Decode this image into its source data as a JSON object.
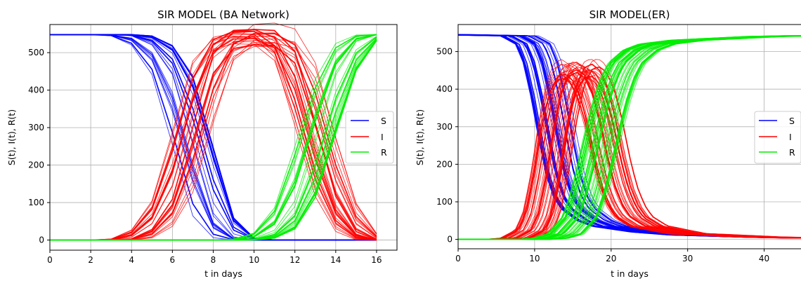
{
  "chart_data": [
    {
      "type": "line",
      "title": "SIR MODEL (BA Network)",
      "xlabel": "t in days",
      "ylabel": "S(t), I(t), R(t)",
      "xlim": [
        0,
        17
      ],
      "ylim": [
        -27,
        575
      ],
      "xticks": [
        0,
        2,
        4,
        6,
        8,
        10,
        12,
        14,
        16
      ],
      "yticks": [
        0,
        100,
        200,
        300,
        400,
        500
      ],
      "grid": true,
      "legend": {
        "position": "right",
        "entries": [
          "S",
          "I",
          "R"
        ]
      },
      "colors": {
        "S": "#0000ff",
        "I": "#ff0000",
        "R": "#00ee00"
      },
      "series": [
        {
          "name": "S",
          "x": [
            0,
            3,
            4,
            5,
            6,
            7,
            8,
            9,
            10,
            16
          ],
          "y": [
            548,
            548,
            545,
            520,
            440,
            250,
            60,
            5,
            0,
            0
          ]
        },
        {
          "name": "I",
          "x": [
            0,
            3,
            4,
            5,
            6,
            7,
            8,
            9,
            10,
            11,
            12,
            13,
            14,
            15,
            16
          ],
          "y": [
            0,
            0,
            3,
            28,
            108,
            298,
            488,
            543,
            548,
            545,
            490,
            300,
            110,
            20,
            0
          ]
        },
        {
          "name": "R",
          "x": [
            0,
            9,
            10,
            11,
            12,
            13,
            14,
            15,
            16
          ],
          "y": [
            0,
            0,
            3,
            20,
            90,
            260,
            440,
            530,
            548
          ]
        }
      ]
    },
    {
      "type": "line",
      "title": "SIR MODEL(ER)",
      "xlabel": "t in days",
      "ylabel": "S(t), I(t), R(t)",
      "xlim": [
        0,
        45
      ],
      "ylim": [
        -25,
        572
      ],
      "xticks": [
        0,
        10,
        20,
        30,
        40
      ],
      "yticks": [
        0,
        100,
        200,
        300,
        400,
        500
      ],
      "grid": true,
      "legend": {
        "position": "right",
        "entries": [
          "S",
          "I",
          "R"
        ]
      },
      "colors": {
        "S": "#0000ff",
        "I": "#ff0000",
        "R": "#00ee00"
      },
      "series": [
        {
          "name": "S",
          "x": [
            0,
            8,
            10,
            11,
            12,
            13,
            14,
            15,
            16,
            18,
            20,
            25,
            30,
            40,
            45
          ],
          "y": [
            545,
            542,
            520,
            470,
            380,
            270,
            170,
            110,
            80,
            50,
            35,
            20,
            12,
            6,
            4
          ]
        },
        {
          "name": "I",
          "x": [
            0,
            6,
            8,
            10,
            11,
            12,
            13,
            14,
            15,
            16,
            17,
            18,
            19,
            20,
            21,
            22,
            23,
            25,
            30,
            40,
            45
          ],
          "y": [
            0,
            0,
            3,
            25,
            70,
            170,
            300,
            400,
            445,
            455,
            440,
            395,
            320,
            220,
            140,
            90,
            60,
            35,
            15,
            6,
            4
          ]
        },
        {
          "name": "R",
          "x": [
            0,
            10,
            12,
            14,
            16,
            17,
            18,
            19,
            20,
            21,
            22,
            24,
            26,
            30,
            35,
            40,
            45
          ],
          "y": [
            0,
            0,
            3,
            15,
            60,
            120,
            200,
            290,
            370,
            430,
            470,
            505,
            520,
            530,
            535,
            540,
            542
          ]
        }
      ]
    }
  ]
}
